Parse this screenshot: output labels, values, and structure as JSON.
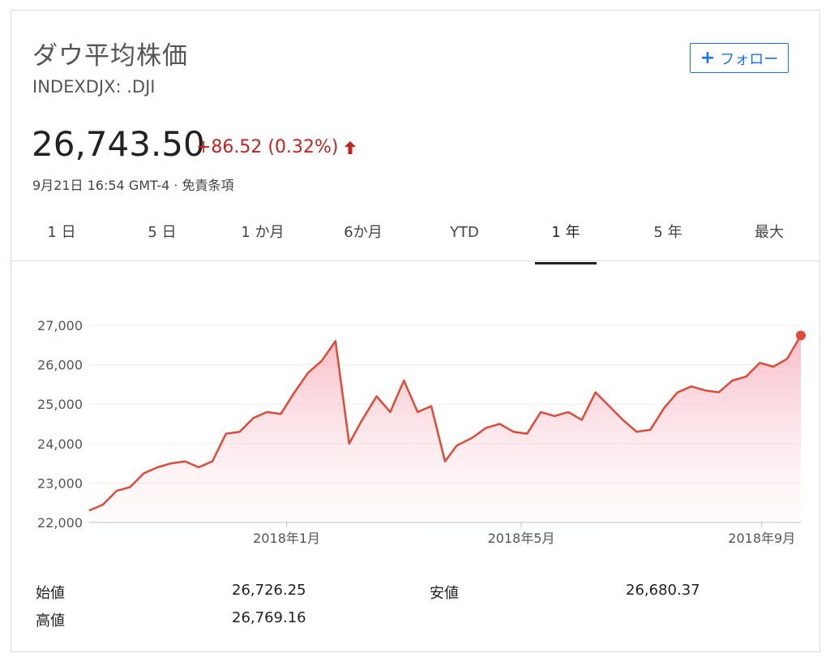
{
  "header": {
    "title": "ダウ平均株価",
    "ticker": "INDEXDJX: .DJI",
    "follow_label": "フォロー",
    "follow_icon": "plus-icon"
  },
  "quote": {
    "price": "26,743.50",
    "change": "+86.52 (0.32%)",
    "direction_icon": "arrow-up-icon",
    "timestamp": "9月21日 16:54 GMT-4 · 免責条項",
    "up_color": "#c5221f"
  },
  "tabs": [
    {
      "label": "1 日"
    },
    {
      "label": "5 日"
    },
    {
      "label": "1 か月"
    },
    {
      "label": "6か月"
    },
    {
      "label": "YTD"
    },
    {
      "label": "1 年",
      "active": true
    },
    {
      "label": "5 年"
    },
    {
      "label": "最大"
    }
  ],
  "chart_data": {
    "type": "area",
    "title": "",
    "xlabel": "",
    "ylabel": "",
    "ylim": [
      22000,
      27000
    ],
    "yticks": [
      "22,000",
      "23,000",
      "24,000",
      "25,000",
      "26,000",
      "27,000"
    ],
    "xticks": [
      {
        "label": "2018年1月",
        "x": "2018-01-01"
      },
      {
        "label": "2018年5月",
        "x": "2018-05-01"
      },
      {
        "label": "2018年9月",
        "x": "2018-09-01"
      }
    ],
    "xlim": [
      "2017-09-22",
      "2018-09-21"
    ],
    "line_color": "#dd4b39",
    "grid": true,
    "series": [
      {
        "x": [
          "2017-09-22",
          "2017-09-29",
          "2017-10-06",
          "2017-10-13",
          "2017-10-20",
          "2017-10-27",
          "2017-11-03",
          "2017-11-10",
          "2017-11-17",
          "2017-11-24",
          "2017-12-01",
          "2017-12-08",
          "2017-12-15",
          "2017-12-22",
          "2017-12-29",
          "2018-01-05",
          "2018-01-12",
          "2018-01-19",
          "2018-01-26",
          "2018-02-02",
          "2018-02-08",
          "2018-02-16",
          "2018-02-23",
          "2018-03-02",
          "2018-03-09",
          "2018-03-16",
          "2018-03-23",
          "2018-03-29",
          "2018-04-06",
          "2018-04-13",
          "2018-04-20",
          "2018-04-27",
          "2018-05-04",
          "2018-05-11",
          "2018-05-18",
          "2018-05-25",
          "2018-06-01",
          "2018-06-08",
          "2018-06-15",
          "2018-06-22",
          "2018-06-29",
          "2018-07-06",
          "2018-07-13",
          "2018-07-20",
          "2018-07-27",
          "2018-08-03",
          "2018-08-10",
          "2018-08-17",
          "2018-08-24",
          "2018-08-31",
          "2018-09-07",
          "2018-09-14",
          "2018-09-21"
        ],
        "values": [
          22300,
          22450,
          22800,
          22900,
          23250,
          23400,
          23500,
          23550,
          23400,
          23550,
          24250,
          24300,
          24650,
          24800,
          24750,
          25300,
          25800,
          26100,
          26600,
          24000,
          24550,
          25200,
          24800,
          25600,
          24800,
          24950,
          23550,
          23950,
          24150,
          24400,
          24500,
          24300,
          24250,
          24800,
          24700,
          24800,
          24600,
          25300,
          24950,
          24600,
          24300,
          24350,
          24900,
          25300,
          25450,
          25350,
          25300,
          25600,
          25700,
          26050,
          25950,
          26150,
          26743.5
        ]
      }
    ],
    "end_point": 26743.5
  },
  "stats": {
    "open_label": "始値",
    "open_value": "26,726.25",
    "high_label": "高値",
    "high_value": "26,769.16",
    "low_label": "安値",
    "low_value": "26,680.37"
  }
}
